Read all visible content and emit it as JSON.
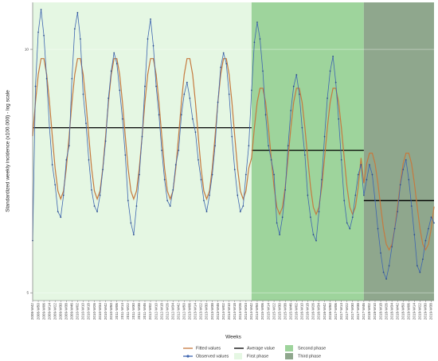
{
  "chart_data": {
    "type": "line",
    "y_label": "Standardized weekly incidence (x100.000) - log scale",
    "x_label": "Weeks",
    "log_scale": true,
    "ylim": [
      4.89,
      11.43
    ],
    "yticks": [
      5,
      10
    ],
    "grid": true,
    "legend": "bottom",
    "categories": [
      "2008-W42",
      null,
      "2008-W50",
      null,
      "2009-W06",
      null,
      "2009-W14",
      null,
      "2009-W22",
      null,
      "2009-W30",
      null,
      "2009-W38",
      null,
      "2009-W46",
      null,
      "2010-W02",
      null,
      "2010-W10",
      null,
      "2010-W18",
      null,
      "2010-W26",
      null,
      "2010-W34",
      null,
      "2010-W42",
      null,
      "2010-W50",
      null,
      "2011-W06",
      null,
      "2011-W14",
      null,
      "2011-W22",
      null,
      "2011-W30",
      null,
      "2011-W38",
      null,
      "2011-W46",
      null,
      "2012-W02",
      null,
      "2012-W10",
      null,
      "2012-W18",
      null,
      "2012-W26",
      null,
      "2012-W34",
      null,
      "2012-W42",
      null,
      "2012-W50",
      null,
      "2013-W06",
      null,
      "2013-W14",
      null,
      "2013-W22",
      null,
      "2013-W30",
      null,
      "2013-W38",
      null,
      "2013-W46",
      null,
      "2014-W02",
      null,
      "2014-W10",
      null,
      "2014-W18",
      null,
      "2014-W26",
      null,
      "2014-W34",
      null,
      "2014-W42",
      null,
      "2014-W50",
      null,
      "2015-W06",
      null,
      "2015-W14",
      null,
      "2015-W22",
      null,
      "2015-W30",
      null,
      "2015-W38",
      null,
      "2015-W46",
      null,
      "2016-W02",
      null,
      "2016-W10",
      null,
      "2016-W18",
      null,
      "2016-W26",
      null,
      "2016-W34",
      null,
      "2016-W42",
      null,
      "2016-W50",
      null,
      "2017-W06",
      null,
      "2017-W14",
      null,
      "2017-W22",
      null,
      "2017-W30",
      null,
      "2017-W38",
      null,
      "2017-W46",
      null,
      "2018-W02",
      null,
      "2018-W10",
      null,
      "2018-W18",
      null,
      "2018-W26",
      null,
      "2018-W34",
      null,
      "2018-W42",
      null,
      "2018-W50",
      null,
      "2019-W06",
      null,
      "2019-W14",
      null,
      "2019-W22",
      null,
      "2019-W30",
      null,
      "2019-W38",
      null
    ],
    "series": [
      {
        "name": "Fitted values",
        "color": "#c57a3f",
        "values": [
          7.81,
          8.6,
          9.31,
          9.74,
          9.74,
          9.31,
          8.6,
          7.81,
          7.13,
          6.68,
          6.53,
          6.68,
          7.13,
          7.81,
          8.6,
          9.31,
          9.74,
          9.74,
          9.31,
          8.6,
          7.81,
          7.13,
          6.68,
          6.53,
          6.68,
          7.13,
          7.81,
          8.6,
          9.31,
          9.74,
          9.74,
          9.31,
          8.6,
          7.81,
          7.13,
          6.68,
          6.53,
          6.68,
          7.13,
          7.81,
          8.6,
          9.31,
          9.74,
          9.74,
          9.31,
          8.6,
          7.81,
          7.13,
          6.68,
          6.53,
          6.68,
          7.13,
          7.81,
          8.6,
          9.31,
          9.74,
          9.74,
          9.31,
          8.6,
          7.81,
          7.13,
          6.68,
          6.53,
          6.68,
          7.13,
          7.81,
          8.6,
          9.31,
          9.74,
          9.74,
          9.31,
          8.6,
          7.81,
          7.13,
          6.68,
          6.53,
          6.68,
          7.13,
          7.34,
          8.0,
          8.6,
          8.95,
          8.95,
          8.6,
          8.0,
          7.34,
          6.76,
          6.38,
          6.25,
          6.38,
          6.76,
          7.34,
          8.0,
          8.6,
          8.95,
          8.95,
          8.6,
          8.0,
          7.34,
          6.76,
          6.38,
          6.25,
          6.38,
          6.76,
          7.34,
          8.0,
          8.6,
          8.95,
          8.95,
          8.6,
          8.0,
          7.34,
          6.76,
          6.38,
          6.25,
          6.38,
          6.76,
          7.34,
          6.83,
          7.22,
          7.44,
          7.44,
          7.22,
          6.83,
          6.39,
          6.0,
          5.74,
          5.65,
          5.74,
          6.0,
          6.39,
          6.83,
          7.22,
          7.44,
          7.44,
          7.22,
          6.83,
          6.39,
          6.0,
          5.74,
          5.65,
          5.74,
          6.0,
          6.39
        ]
      },
      {
        "name": "Observed values",
        "color": "#3f66b0",
        "values": [
          5.8,
          9.0,
          10.5,
          11.2,
          10.4,
          9.2,
          8.0,
          7.2,
          6.8,
          6.3,
          6.2,
          6.6,
          7.3,
          7.6,
          9.2,
          10.6,
          11.1,
          10.3,
          8.8,
          8.1,
          7.3,
          6.7,
          6.4,
          6.3,
          6.6,
          7.1,
          7.7,
          8.7,
          9.4,
          9.9,
          9.6,
          8.9,
          8.2,
          7.4,
          6.5,
          6.1,
          5.9,
          6.4,
          7.0,
          7.8,
          9.0,
          10.3,
          10.9,
          10.1,
          9.0,
          8.3,
          7.5,
          6.9,
          6.5,
          6.4,
          6.7,
          7.2,
          7.5,
          8.3,
          8.8,
          9.1,
          8.7,
          8.2,
          7.9,
          7.3,
          6.9,
          6.5,
          6.3,
          6.6,
          7.0,
          7.6,
          8.6,
          9.5,
          9.9,
          9.6,
          8.8,
          7.8,
          7.1,
          6.6,
          6.3,
          6.4,
          7.0,
          7.6,
          8.9,
          10.2,
          10.8,
          10.3,
          9.4,
          8.3,
          7.6,
          7.3,
          7.0,
          6.1,
          5.9,
          6.2,
          6.7,
          7.6,
          8.4,
          9.0,
          9.3,
          8.8,
          8.0,
          7.4,
          6.6,
          6.2,
          5.9,
          5.8,
          6.3,
          6.9,
          7.8,
          8.7,
          9.4,
          9.8,
          9.1,
          8.2,
          7.3,
          6.5,
          6.1,
          6.0,
          6.2,
          6.6,
          7.0,
          7.2,
          6.6,
          6.9,
          7.2,
          7.0,
          6.5,
          6.0,
          5.6,
          5.3,
          5.2,
          5.4,
          5.7,
          6.0,
          6.3,
          6.8,
          7.1,
          7.3,
          6.9,
          6.4,
          5.9,
          5.4,
          5.3,
          5.5,
          5.8,
          6.0,
          6.2,
          6.1
        ]
      }
    ],
    "average": {
      "name": "Average value",
      "color": "#000000",
      "values": [
        8.0,
        7.5,
        6.5
      ]
    },
    "phases": [
      {
        "name": "First phase",
        "color": "#e5f7e3",
        "start": "2008-W42"
      },
      {
        "name": "Second phase",
        "color": "#9ed49c",
        "start": "2014-W42"
      },
      {
        "name": "Third phase",
        "color": "#8fa78d",
        "start": "2017-W46"
      }
    ]
  }
}
